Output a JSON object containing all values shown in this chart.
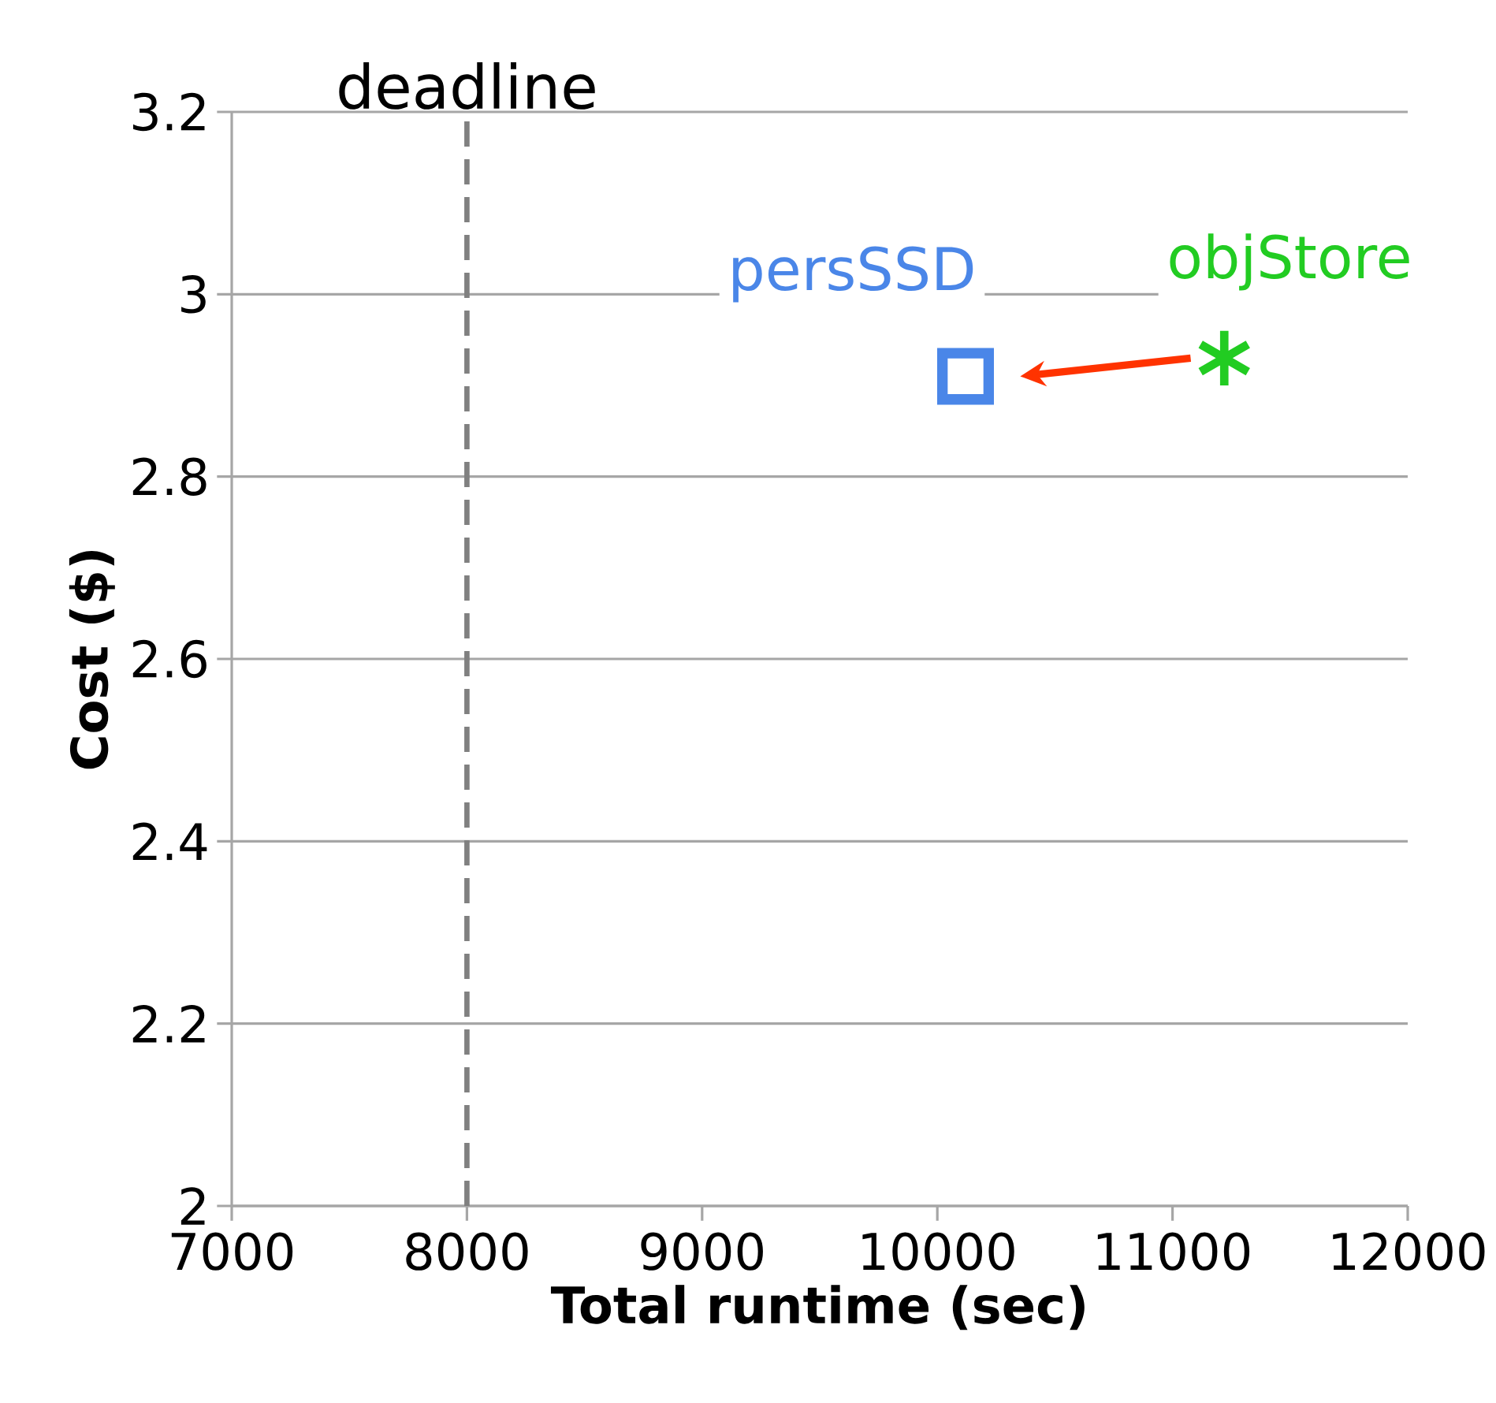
{
  "chart_data": {
    "type": "scatter",
    "xlabel": "Total runtime (sec)",
    "ylabel": "Cost ($)",
    "xlim": [
      7000,
      12000
    ],
    "xticks": [
      7000,
      8000,
      9000,
      10000,
      11000,
      12000
    ],
    "ylim": [
      2,
      3.2
    ],
    "yticks": [
      2,
      2.2,
      2.4,
      2.6,
      2.8,
      3,
      3.2
    ],
    "grid": "y",
    "series": [
      {
        "name": "persSSD",
        "color": "#4a86e8",
        "marker": "square",
        "x": [
          10120
        ],
        "values": [
          2.91
        ]
      },
      {
        "name": "objStore",
        "color": "#22cc22",
        "marker": "cross",
        "x": [
          11220
        ],
        "values": [
          2.93
        ]
      }
    ],
    "ref_lines": [
      {
        "axis": "x",
        "value": 8000,
        "label": "deadline",
        "color": "#808080",
        "line_style": "dashed"
      }
    ]
  }
}
